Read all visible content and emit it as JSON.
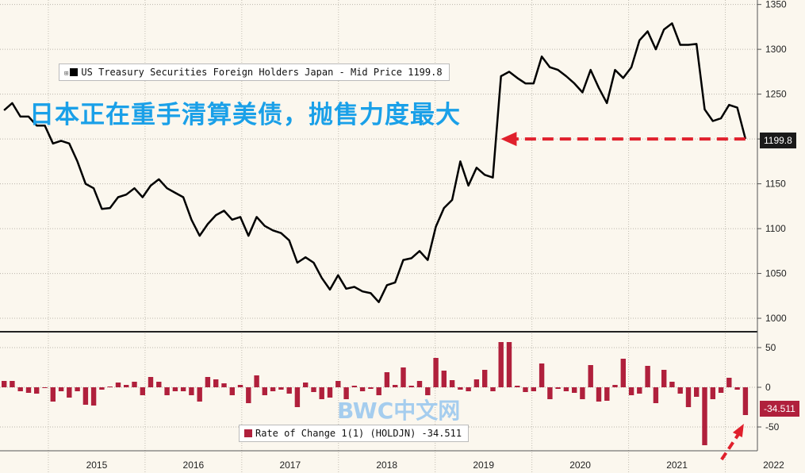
{
  "headline": "日本正在重手清算美债，抛售力度最大",
  "watermark": "BWC中文网",
  "colors": {
    "background": "#fbf7ee",
    "price_line": "#000000",
    "bars": "#b0203c",
    "arrow": "#e0202c",
    "headline": "#1aa0e8"
  },
  "chart_data": [
    {
      "type": "line",
      "legend": "US Treasury Securities Foreign Holders Japan - Mid Price 1199.8",
      "last_value_label": "1199.8",
      "ylim": [
        985,
        1355
      ],
      "yticks": [
        1000,
        1050,
        1100,
        1150,
        1200,
        1250,
        1300,
        1350
      ],
      "x_start": 2014.5,
      "x_end": 2022.25,
      "values": [
        1232,
        1240,
        1225,
        1225,
        1215,
        1215,
        1195,
        1198,
        1195,
        1175,
        1150,
        1145,
        1122,
        1123,
        1135,
        1138,
        1145,
        1135,
        1148,
        1155,
        1145,
        1140,
        1135,
        1110,
        1092,
        1105,
        1115,
        1120,
        1110,
        1113,
        1092,
        1113,
        1103,
        1098,
        1095,
        1087,
        1062,
        1068,
        1062,
        1045,
        1032,
        1048,
        1033,
        1035,
        1030,
        1028,
        1018,
        1037,
        1040,
        1065,
        1067,
        1075,
        1065,
        1102,
        1123,
        1132,
        1175,
        1148,
        1168,
        1160,
        1157,
        1270,
        1275,
        1268,
        1262,
        1262,
        1292,
        1280,
        1277,
        1270,
        1262,
        1252,
        1277,
        1257,
        1240,
        1277,
        1268,
        1280,
        1310,
        1320,
        1300,
        1322,
        1329,
        1305,
        1305,
        1306,
        1233,
        1220,
        1223,
        1238,
        1235,
        1200
      ]
    },
    {
      "type": "bar",
      "legend": "Rate of Change 1(1) (HOLDJN) -34.511",
      "last_value_label": "-34.511",
      "ylim": [
        -80,
        70
      ],
      "yticks": [
        50,
        0,
        -50
      ],
      "values": [
        8,
        8,
        -5,
        -7,
        -8,
        0,
        -18,
        -5,
        -13,
        -5,
        -22,
        -23,
        -3,
        1,
        6,
        3,
        7,
        -10,
        13,
        7,
        -10,
        -5,
        -5,
        -10,
        -18,
        13,
        10,
        5,
        -10,
        3,
        -20,
        15,
        -10,
        -5,
        -3,
        -8,
        -25,
        6,
        -6,
        -15,
        -13,
        8,
        -15,
        2,
        -5,
        -2,
        -10,
        19,
        3,
        25,
        2,
        8,
        -10,
        37,
        21,
        9,
        -3,
        -5,
        10,
        22,
        -5,
        57,
        57,
        2,
        -6,
        -5,
        30,
        -15,
        -2,
        -5,
        -7,
        -15,
        28,
        -18,
        -17,
        3,
        36,
        -10,
        -8,
        27,
        -20,
        22,
        7,
        -8,
        -25,
        -12,
        -73,
        -15,
        -7,
        12,
        -3,
        -35
      ],
      "xaxis_labels": [
        "2015",
        "2016",
        "2017",
        "2018",
        "2019",
        "2020",
        "2021",
        "2022"
      ]
    }
  ]
}
